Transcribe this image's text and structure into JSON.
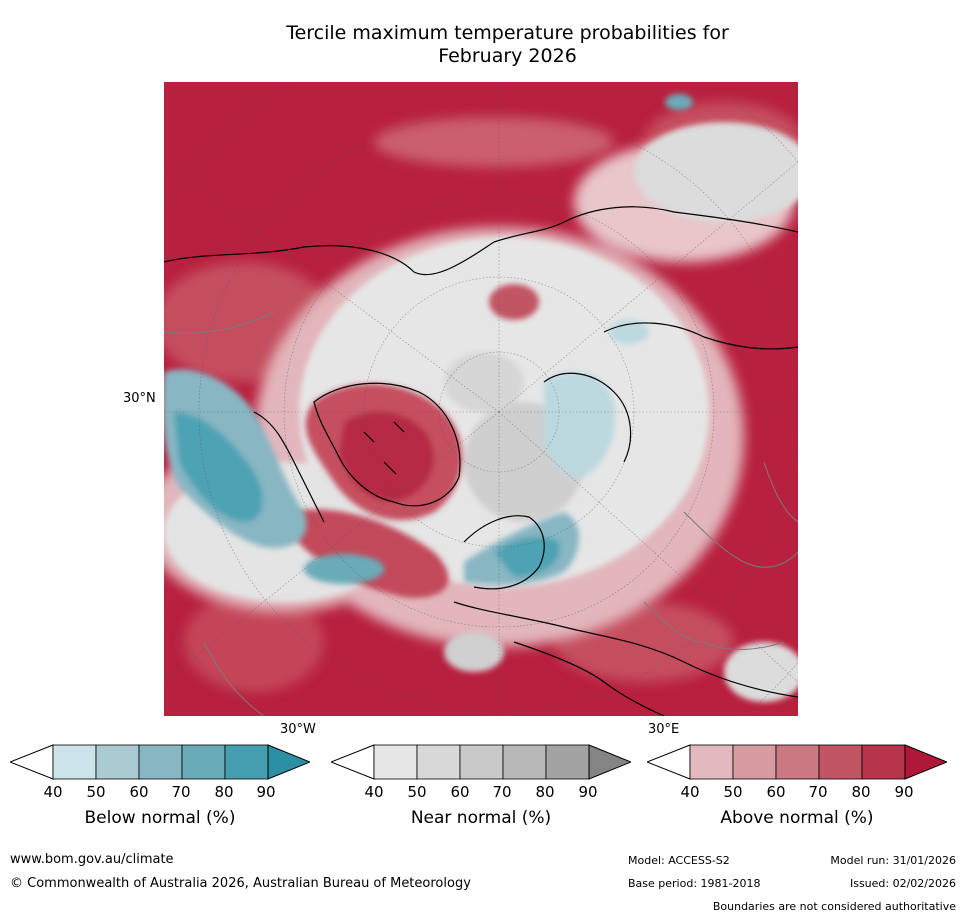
{
  "title": "Tercile maximum temperature probabilities for\nFebruary 2026",
  "map": {
    "projection": "North polar stereographic",
    "axis_labels": {
      "left": "30°N",
      "bottom_left": "30°W",
      "bottom_right": "30°E"
    }
  },
  "colorbars": [
    {
      "id": "below",
      "label": "Below normal (%)",
      "ticks": [
        "40",
        "50",
        "60",
        "70",
        "80",
        "90"
      ],
      "colors": [
        "#ffffff",
        "#cce4e9",
        "#aacbd2",
        "#88b6c3",
        "#6aabb9",
        "#469fb0",
        "#2d8fa4"
      ]
    },
    {
      "id": "near",
      "label": "Near normal (%)",
      "ticks": [
        "40",
        "50",
        "60",
        "70",
        "80",
        "90"
      ],
      "colors": [
        "#ffffff",
        "#e6e6e6",
        "#d8d8d8",
        "#c9c9c9",
        "#b8b8b8",
        "#a3a3a3",
        "#848484"
      ]
    },
    {
      "id": "above",
      "label": "Above normal (%)",
      "ticks": [
        "40",
        "50",
        "60",
        "70",
        "80",
        "90"
      ],
      "colors": [
        "#ffffff",
        "#e3b9bf",
        "#d89ba2",
        "#cc7882",
        "#c25564",
        "#b8344a",
        "#b0183a"
      ]
    }
  ],
  "footer": {
    "website": "www.bom.gov.au/climate",
    "copyright": "© Commonwealth of Australia 2026, Australian Bureau of Meteorology",
    "model": "Model: ACCESS-S2",
    "base_period": "Base period: 1981-2018",
    "model_run": "Model run: 31/01/2026",
    "issued": "Issued: 02/02/2026",
    "disclaimer": "Boundaries are not considered authoritative"
  }
}
